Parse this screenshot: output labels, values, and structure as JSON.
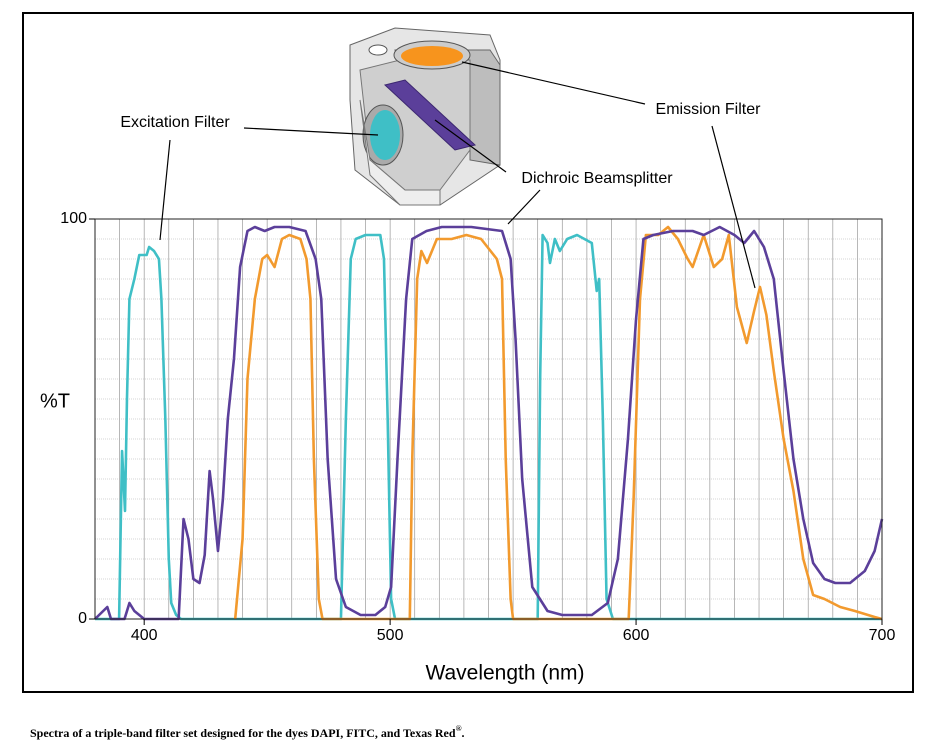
{
  "chart_data": {
    "type": "line",
    "ylabel": "%T",
    "xlabel": "Wavelength (nm)",
    "xlim": [
      380,
      700
    ],
    "ylim": [
      0,
      100
    ],
    "xticks": [
      400,
      500,
      600,
      700
    ],
    "yticks": [
      0,
      100
    ],
    "xgrid": [
      390,
      400,
      410,
      420,
      430,
      440,
      450,
      460,
      470,
      480,
      490,
      500,
      510,
      520,
      530,
      540,
      550,
      560,
      570,
      580,
      590,
      600,
      610,
      620,
      630,
      640,
      650,
      660,
      670,
      680,
      690
    ],
    "ygrid": [
      5,
      10,
      15,
      20,
      25,
      30,
      35,
      40,
      45,
      50,
      55,
      60,
      65,
      70,
      75,
      80,
      85,
      90,
      95
    ],
    "grid": true,
    "annotations": [
      "Excitation Filter",
      "Emission Filter",
      "Dichroic Beamsplitter"
    ],
    "caption": [
      "Spectra of a triple-band filter set designed for the dyes DAPI, FITC, and Texas Red",
      "®",
      "."
    ],
    "series": [
      {
        "color": "#3fbfc6",
        "x": [
          380,
          389.8,
          391,
          392.2,
          393,
          394,
          396,
          398,
          401,
          402,
          404,
          406,
          407,
          408.6,
          410,
          411,
          413,
          415,
          480,
          480,
          482,
          484,
          486,
          490,
          496,
          497.5,
          499,
          500.4,
          502,
          560,
          561,
          562,
          564,
          565,
          567,
          569,
          572,
          576,
          582,
          584,
          585,
          586.5,
          588,
          590.6,
          700
        ],
        "values": [
          0,
          0,
          42,
          27,
          55,
          80,
          85,
          91,
          91,
          93,
          92,
          90,
          80,
          50,
          15,
          4,
          1,
          0,
          0,
          0,
          50,
          90,
          95,
          96,
          96,
          90,
          50,
          5,
          0,
          0,
          60,
          96,
          94,
          89,
          95,
          92,
          95,
          96,
          94,
          82,
          85,
          50,
          5,
          0,
          0
        ]
      },
      {
        "color": "#f29a2e",
        "x": [
          437,
          440,
          442,
          445,
          448,
          450,
          453,
          456,
          459,
          463.5,
          466,
          467.6,
          469,
          471,
          472.5,
          508,
          509,
          511,
          512.7,
          515,
          519,
          525,
          531,
          537,
          543.4,
          545.5,
          547,
          549,
          550,
          597,
          599,
          601.6,
          604,
          609,
          613,
          617,
          621,
          623,
          627.5,
          631.6,
          635,
          637.7,
          641,
          645,
          648,
          650.4,
          653,
          656,
          660,
          664,
          668,
          672,
          676.6,
          683,
          689,
          697,
          700
        ],
        "values": [
          0,
          20,
          60,
          80,
          90,
          91,
          88,
          95,
          96,
          95,
          90,
          80,
          40,
          5,
          0,
          0,
          40,
          85,
          92,
          89,
          95,
          95,
          96,
          95,
          90,
          85,
          40,
          5,
          0,
          0,
          30,
          80,
          96,
          96,
          98,
          95,
          90,
          88,
          96,
          88,
          90,
          96,
          78,
          69,
          77,
          83,
          76,
          62,
          45,
          32,
          15,
          6,
          5,
          3,
          2,
          0.5,
          0
        ]
      },
      {
        "color": "#5b3f9a",
        "x": [
          380,
          385,
          386.5,
          392,
          394,
          396,
          400,
          414,
          416,
          418,
          420,
          422.5,
          424.6,
          426.6,
          428,
          430,
          432,
          434,
          436.5,
          439,
          442,
          445,
          449,
          453,
          459,
          465.6,
          469.7,
          472,
          474.6,
          478,
          482,
          488,
          494,
          498,
          500.4,
          503,
          506.5,
          509,
          514.8,
          521,
          533,
          545.5,
          549,
          551,
          553.7,
          557.8,
          564,
          570,
          582,
          588.5,
          592.6,
          596.7,
          600,
          603,
          607,
          615,
          623,
          627.5,
          634,
          640,
          644,
          648,
          652,
          656,
          660,
          664,
          668,
          672,
          676.6,
          681,
          687,
          693,
          697,
          700
        ],
        "values": [
          0,
          3,
          0,
          0,
          4,
          2,
          0,
          0,
          25,
          20,
          10,
          9,
          16,
          37,
          30,
          17,
          30,
          50,
          65,
          88,
          97,
          98,
          97,
          98,
          98,
          97,
          90,
          80,
          40,
          10,
          3,
          1,
          1,
          3,
          8,
          40,
          80,
          95,
          97,
          98,
          98,
          97,
          90,
          70,
          35,
          8,
          2,
          1,
          1,
          4,
          15,
          45,
          75,
          95,
          96,
          97,
          97,
          96,
          98,
          96,
          94,
          97,
          93,
          85,
          62,
          40,
          25,
          14,
          10,
          9,
          9,
          12,
          17,
          25
        ]
      }
    ]
  }
}
